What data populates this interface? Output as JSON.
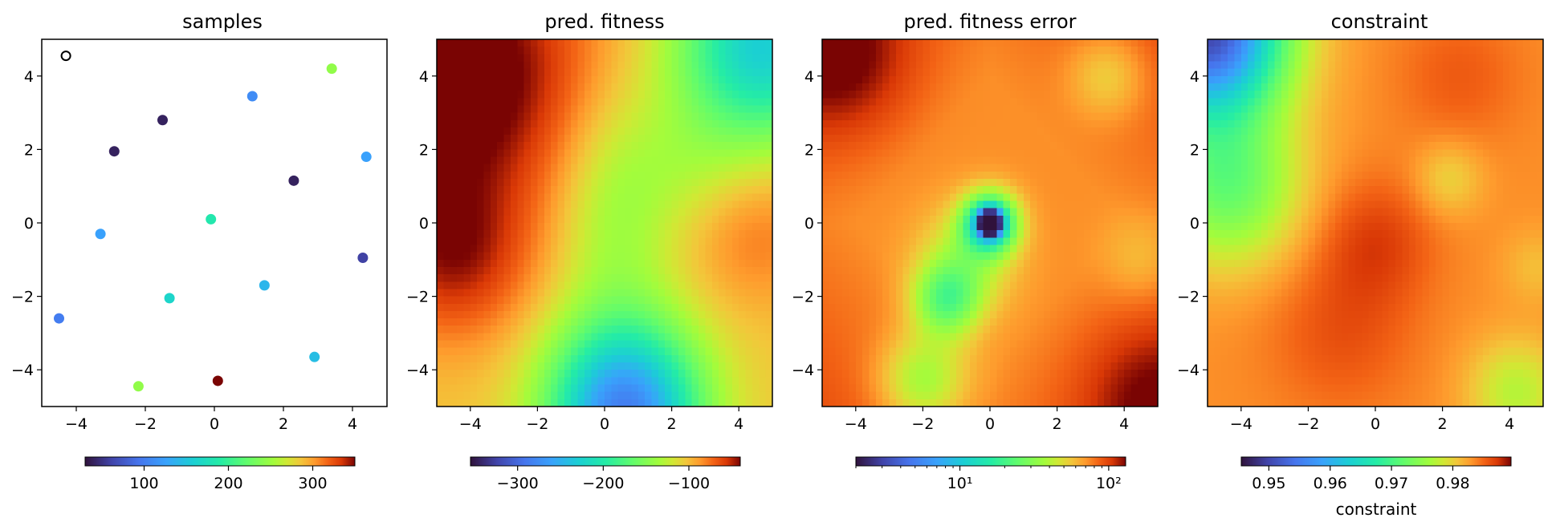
{
  "chart_data": [
    {
      "type": "scatter",
      "title": "samples",
      "xlim": [
        -5,
        5
      ],
      "ylim": [
        -5,
        5
      ],
      "xticks": [
        "−4",
        "−2",
        "0",
        "2",
        "4"
      ],
      "yticks": [
        "−4",
        "−2",
        "0",
        "2",
        "4"
      ],
      "points": [
        {
          "x": -4.3,
          "y": 4.55,
          "value": null,
          "hollow": true
        },
        {
          "x": -1.5,
          "y": 2.8,
          "value": 40
        },
        {
          "x": -2.9,
          "y": 1.95,
          "value": 40
        },
        {
          "x": 1.1,
          "y": 3.45,
          "value": 110
        },
        {
          "x": 3.4,
          "y": 4.2,
          "value": 245
        },
        {
          "x": 4.4,
          "y": 1.8,
          "value": 125
        },
        {
          "x": 2.3,
          "y": 1.15,
          "value": 40
        },
        {
          "x": -0.1,
          "y": 0.1,
          "value": 185
        },
        {
          "x": -3.3,
          "y": -0.3,
          "value": 125
        },
        {
          "x": 4.3,
          "y": -0.95,
          "value": 60
        },
        {
          "x": -1.3,
          "y": -2.05,
          "value": 165
        },
        {
          "x": 1.45,
          "y": -1.7,
          "value": 140
        },
        {
          "x": -4.5,
          "y": -2.6,
          "value": 100
        },
        {
          "x": 2.9,
          "y": -3.65,
          "value": 145
        },
        {
          "x": -2.2,
          "y": -4.45,
          "value": 245
        },
        {
          "x": 0.1,
          "y": -4.3,
          "value": 350
        }
      ],
      "colorbar": {
        "min": 30,
        "max": 350,
        "scale": "linear",
        "ticks": [
          100,
          200,
          300
        ],
        "tick_labels": [
          "100",
          "200",
          "300"
        ],
        "label": ""
      }
    },
    {
      "type": "heatmap",
      "title": "pred.  fitness",
      "xlim": [
        -5,
        5
      ],
      "ylim": [
        -5,
        5
      ],
      "xticks": [
        "−4",
        "−2",
        "0",
        "2",
        "4"
      ],
      "yticks": [
        "−4",
        "−2",
        "0",
        "2",
        "4"
      ],
      "colorbar": {
        "min": -355,
        "max": -40,
        "scale": "linear",
        "ticks": [
          -300,
          -200,
          -100
        ],
        "tick_labels": [
          "−300",
          "−200",
          "−100"
        ],
        "label": ""
      }
    },
    {
      "type": "heatmap",
      "title": "pred.  fitness error",
      "xlim": [
        -5,
        5
      ],
      "ylim": [
        -5,
        5
      ],
      "xticks": [
        "−4",
        "−2",
        "0",
        "2",
        "4"
      ],
      "yticks": [
        "−4",
        "−2",
        "0",
        "2",
        "4"
      ],
      "colorbar": {
        "min": 2,
        "max": 130,
        "scale": "log",
        "ticks": [
          10,
          100
        ],
        "tick_labels": [
          "10¹",
          "10²"
        ],
        "label": ""
      }
    },
    {
      "type": "heatmap",
      "title": "constraint",
      "xlim": [
        -5,
        5
      ],
      "ylim": [
        -5,
        5
      ],
      "xticks": [
        "−4",
        "−2",
        "0",
        "2",
        "4"
      ],
      "yticks": [
        "−4",
        "−2",
        "0",
        "2",
        "4"
      ],
      "colorbar": {
        "min": 0.9455,
        "max": 0.9895,
        "scale": "linear",
        "ticks": [
          0.95,
          0.96,
          0.97,
          0.98
        ],
        "tick_labels": [
          "0.95",
          "0.96",
          "0.97",
          "0.98"
        ],
        "label": "constraint"
      }
    }
  ]
}
